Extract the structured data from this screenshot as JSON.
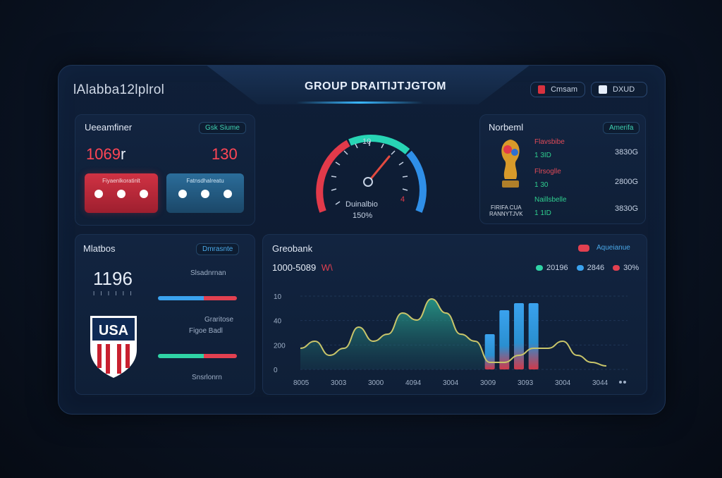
{
  "header": {
    "app_title": "lAlabba12lplrol",
    "center_title": "GROUP DRAITIJTJGTOM",
    "btn_left_label": "Cmsam",
    "btn_right_label": "DXUD"
  },
  "panel_score": {
    "title": "Ueeamfiner",
    "tag": "Gsk Siume",
    "score_left": "1069",
    "score_left_suffix": "r",
    "score_right": "130",
    "btn_red_caption": "Fiyaenlkoratinlt",
    "btn_blue_caption": "Fatnsdhalreatu"
  },
  "gauge": {
    "ticks": [
      "10",
      "4"
    ],
    "caption": "Duinalbio",
    "value_text": "150%",
    "needle_fraction": 0.72,
    "colors": {
      "red": "#e23a4a",
      "teal": "#28d5b5",
      "blue": "#2f8fe8"
    }
  },
  "panel_teams": {
    "title": "Norbeml",
    "tag": "Amerifa",
    "trophy_caption_1": "FIRIFA CUA",
    "trophy_caption_2": "RANNYTJVK",
    "rows": [
      {
        "label": "Flavsbibe",
        "value": "1 3ID",
        "num": "3830G"
      },
      {
        "label": "Flrsoglle",
        "value": "1 30",
        "num": "2800G"
      },
      {
        "label": "Naillsbelle",
        "value": "1 1ID",
        "num": "3830G"
      }
    ]
  },
  "panel_matches": {
    "title": "Mlatbos",
    "tag": "Dmrasnte",
    "big_number": "1196",
    "big_number_sub": "I I I I I I",
    "label_1": "Slsadnrnan",
    "bar_1": {
      "blue_fraction": 0.58,
      "blue": "#3aa2ee",
      "red": "#e24050"
    },
    "label_2a": "Graritose",
    "label_2b": "Figoe Badl",
    "bar_2": {
      "teal_fraction": 0.58,
      "teal": "#2fd3a5",
      "red": "#e24050"
    },
    "label_3": "Snsrlonrn",
    "crest_text": "USA"
  },
  "panel_chart": {
    "title": "Greobank",
    "range_text": "1000-5089",
    "range_badge": "W\\",
    "pill_label": "Aqueianue",
    "legend": [
      {
        "name": "20196",
        "color": "#2fd3a5"
      },
      {
        "name": "2846",
        "color": "#3aa2ee"
      },
      {
        "name": "30%",
        "color": "#e24050"
      }
    ],
    "more_icon": "ellipsis-icon"
  },
  "chart_data": {
    "type": "area",
    "yticks": [
      "10",
      "40",
      "200",
      "0"
    ],
    "xticks": [
      "8005",
      "3003",
      "3000",
      "4094",
      "3004",
      "3009",
      "3093",
      "3004",
      "3044"
    ],
    "series": [
      {
        "values": [
          3,
          4,
          2,
          3,
          6,
          4,
          5,
          8,
          7,
          10,
          8,
          5,
          4,
          1,
          1,
          2,
          3,
          3,
          4,
          2,
          1,
          0.5
        ]
      }
    ],
    "bars_x_index": [
      5.6,
      6.6,
      7.6,
      8.6
    ],
    "bars_values": [
      5,
      8.4,
      9.4,
      9.4
    ]
  }
}
